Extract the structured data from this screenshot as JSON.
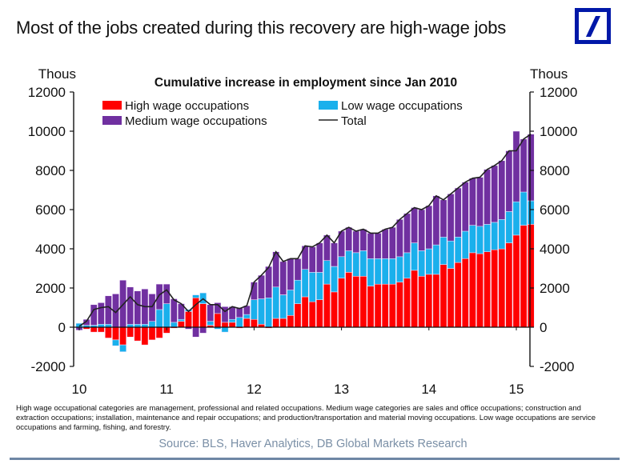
{
  "headline": "Most of the jobs created during this recovery are high-wage jobs",
  "logo": {
    "icon": "deutsche-bank-slash-logo",
    "color": "#0018a8"
  },
  "footnote": "High wage occupational categories are management, professional and related occupations. Medium wage categories are sales and office occupations; construction and extraction occupations; installation, maintenance and repair occupations; and production/transportation and material moving occupations. Low wage occupations are service occupations and farming, fishing, and forestry.",
  "source": "Source: BLS, Haver Analytics, DB Global Markets Research",
  "chart_data": {
    "type": "bar",
    "stacked": true,
    "title": "Cumulative increase in employment since Jan 2010",
    "ylabel_left": "Thous",
    "ylabel_right": "Thous",
    "ylim": [
      -2000,
      12000
    ],
    "yticks": [
      -2000,
      0,
      2000,
      4000,
      6000,
      8000,
      10000,
      12000
    ],
    "ytick_labels": [
      "-2000",
      "0",
      "2000",
      "4000",
      "6000",
      "8000",
      "10000",
      "12000"
    ],
    "xtick_labels": [
      "10",
      "11",
      "12",
      "13",
      "14",
      "15"
    ],
    "x_start": "Jan 2010",
    "x_end": "Mar 2015",
    "frequency": "monthly",
    "grid": false,
    "legend": [
      {
        "name": "High wage occupations",
        "color": "#ff0000",
        "marker": "box"
      },
      {
        "name": "Low wage occupations",
        "color": "#1ab0ec",
        "marker": "box"
      },
      {
        "name": "Medium wage occupations",
        "color": "#7030a0",
        "marker": "box"
      },
      {
        "name": "Total",
        "color": "#222222",
        "marker": "line"
      }
    ],
    "series": [
      {
        "name": "High wage occupations",
        "color": "#ff0000",
        "values": [
          0,
          -100,
          -250,
          -250,
          -550,
          -650,
          -900,
          -500,
          -700,
          -900,
          -650,
          -550,
          -300,
          -50,
          300,
          800,
          1500,
          1200,
          100,
          700,
          250,
          250,
          -50,
          450,
          400,
          150,
          -50,
          450,
          450,
          600,
          1200,
          1550,
          1300,
          1400,
          2200,
          1800,
          2500,
          2800,
          2600,
          2600,
          2100,
          2200,
          2200,
          2200,
          2300,
          2500,
          2900,
          2600,
          2700,
          2700,
          3200,
          3000,
          3300,
          3500,
          3800,
          3750,
          3850,
          3950,
          4000,
          4300,
          4700,
          5200,
          5250
        ]
      },
      {
        "name": "Low wage occupations",
        "color": "#1ab0ec",
        "values": [
          200,
          100,
          100,
          150,
          150,
          -300,
          -350,
          150,
          150,
          150,
          300,
          900,
          1200,
          250,
          100,
          100,
          150,
          550,
          200,
          -100,
          -250,
          150,
          500,
          200,
          1000,
          1300,
          1500,
          1600,
          1200,
          1300,
          1200,
          1400,
          1500,
          1400,
          1200,
          1300,
          1100,
          1100,
          1200,
          1300,
          1400,
          1300,
          1300,
          1300,
          1300,
          1300,
          1400,
          1300,
          1300,
          1500,
          1400,
          1400,
          1300,
          1400,
          1400,
          1400,
          1400,
          1400,
          1500,
          1600,
          1700,
          1700,
          1200
        ]
      },
      {
        "name": "Medium wage occupations",
        "color": "#7030a0",
        "values": [
          -150,
          300,
          1050,
          1100,
          1450,
          1700,
          2400,
          1900,
          1700,
          1800,
          1400,
          1300,
          1000,
          1200,
          800,
          -100,
          -500,
          -300,
          850,
          550,
          800,
          650,
          500,
          450,
          900,
          1200,
          1600,
          1800,
          1700,
          1600,
          1100,
          1200,
          1300,
          1500,
          1300,
          1200,
          1300,
          1200,
          1100,
          1100,
          1300,
          1300,
          1500,
          1600,
          1900,
          2000,
          1800,
          2100,
          2200,
          2500,
          1900,
          2400,
          2500,
          2500,
          2400,
          2500,
          2800,
          2900,
          3000,
          3100,
          3600,
          2700,
          3400
        ]
      },
      {
        "name": "Total",
        "color": "#222222",
        "type": "line",
        "values": [
          50,
          300,
          900,
          1000,
          1050,
          750,
          1150,
          1550,
          1150,
          1050,
          1050,
          1650,
          1900,
          1400,
          1200,
          800,
          1150,
          1450,
          1150,
          1150,
          800,
          1050,
          950,
          1100,
          2300,
          2650,
          3050,
          3850,
          3350,
          3500,
          3500,
          4150,
          4100,
          4300,
          4700,
          4300,
          4900,
          5100,
          4900,
          5000,
          4800,
          4800,
          5000,
          5100,
          5500,
          5800,
          6100,
          6000,
          6200,
          6700,
          6500,
          6800,
          7100,
          7400,
          7600,
          7650,
          8050,
          8250,
          8500,
          9000,
          9000,
          9600,
          9850
        ]
      }
    ]
  }
}
